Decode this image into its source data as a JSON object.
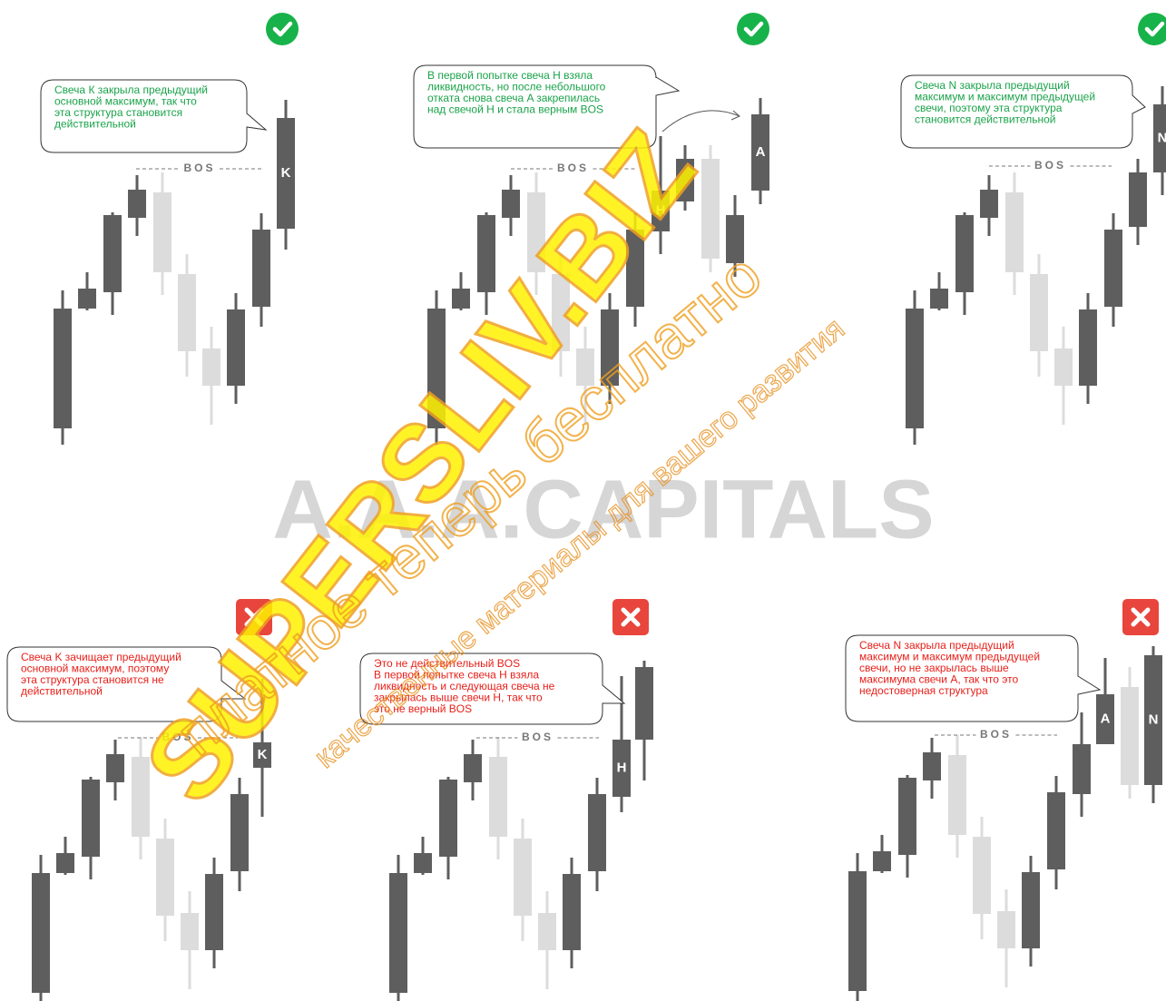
{
  "panels": [
    {
      "icon": "check",
      "text_color": "#1aa34a",
      "callout": [
        "Свеча К закрыла предыдущий",
        "основной максимум, так что",
        "эта структура становится",
        "действительной"
      ],
      "bos": "BOS",
      "letters": [
        "K"
      ]
    },
    {
      "icon": "check",
      "text_color": "#1aa34a",
      "callout": [
        "В первой попытке свеча H взяла",
        "ликвидность, но после небольшого",
        "отката снова свеча A закрепилась",
        "над свечой H и стала верным BOS"
      ],
      "bos": "BOS",
      "letters": [
        "H",
        "A"
      ]
    },
    {
      "icon": "check",
      "text_color": "#1aa34a",
      "callout": [
        "Свеча N закрыла предыдущий",
        "максимум и максимум предыдущей",
        "свечи, поэтому эта структура",
        "становится действительной"
      ],
      "bos": "BOS",
      "letters": [
        "N"
      ]
    },
    {
      "icon": "cross",
      "text_color": "#e8201a",
      "callout": [
        "Свеча K зачищает предыдущий",
        "основной максимум, поэтому",
        "эта структура становится не",
        "действительной"
      ],
      "bos": "BOS",
      "letters": [
        "K"
      ]
    },
    {
      "icon": "cross",
      "text_color": "#e8201a",
      "callout": [
        "Это не действительный BOS",
        "В первой попытке свеча H взяла",
        "ликвидность и следующая свеча не",
        "закрылась выше свечи H, так что",
        "это не верный BOS"
      ],
      "bos": "BOS",
      "letters": [
        "H"
      ]
    },
    {
      "icon": "cross",
      "text_color": "#e8201a",
      "callout": [
        "Свеча N закрыла предыдущий",
        "максимум и максимум предыдущей",
        "свечи, но  не закрылась выше",
        "максимума свечи A, так что это",
        "недостоверная структура"
      ],
      "bos": "BOS",
      "letters": [
        "A",
        "N"
      ]
    }
  ],
  "watermarks": {
    "main": "A.A.A.CAPITALS",
    "stamp": "SUPERSLIV.BIZ",
    "line1": "платное теперь бесплатно",
    "line2": "качественные материалы для вашего развития"
  }
}
